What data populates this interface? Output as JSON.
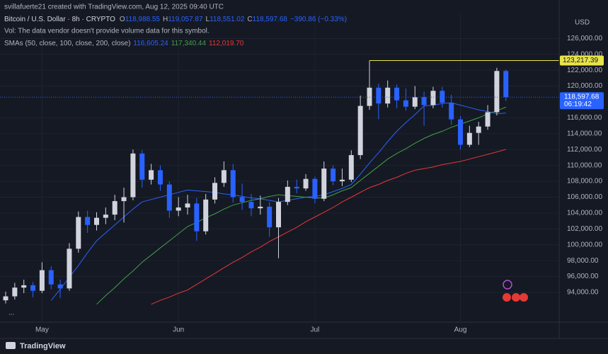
{
  "header": {
    "byline": "svillafuerte21 created with TradingView.com, Aug 12, 2025 09:40 UTC",
    "symbol": "Bitcoin / U.S. Dollar · 8h · CRYPTO",
    "ohlc_legend": [
      [
        "O",
        "118,988.55"
      ],
      [
        "H",
        "119,057.87"
      ],
      [
        "L",
        "118,551.02"
      ],
      [
        "C",
        "118,597.68"
      ]
    ],
    "change": "−390.86 (−0.33%)",
    "volume_note": "Vol: The data vendor doesn't provide volume data for this symbol.",
    "sma_legend": "SMAs (50, close, 100, close, 200, close)",
    "sma_values": [
      "116,605.24",
      "117,340.44",
      "112,019.70"
    ],
    "currency": "USD",
    "more": "...",
    "brand": "TradingView"
  },
  "chart_data": {
    "type": "candlestick",
    "categories": [
      null,
      null,
      null,
      null,
      "May",
      null,
      null,
      null,
      null,
      null,
      null,
      null,
      null,
      null,
      null,
      null,
      null,
      null,
      null,
      "Jun",
      null,
      null,
      null,
      null,
      null,
      null,
      null,
      null,
      null,
      null,
      null,
      null,
      null,
      null,
      "Jul",
      null,
      null,
      null,
      null,
      null,
      null,
      null,
      null,
      null,
      null,
      null,
      null,
      null,
      null,
      null,
      "Aug",
      null,
      null,
      null,
      null,
      null
    ],
    "open": [
      93000,
      93500,
      94600,
      94900,
      94200,
      96800,
      95000,
      94500,
      99500,
      103500,
      102500,
      103400,
      103800,
      105500,
      106000,
      111500,
      108200,
      109400,
      107600,
      104300,
      104700,
      105200,
      101700,
      105700,
      107800,
      109400,
      106000,
      105400,
      104600,
      104800,
      102200,
      105400,
      107300,
      107100,
      108300,
      105800,
      109600,
      108000,
      108200,
      111300,
      117500,
      119800,
      117800,
      119800,
      118200,
      117400,
      118600,
      117600,
      119400,
      117900,
      115800,
      112600,
      114100,
      114900,
      116700,
      121900
    ],
    "high": [
      94100,
      95200,
      95600,
      95300,
      97800,
      97300,
      95600,
      100200,
      104200,
      104300,
      104100,
      104700,
      106300,
      107200,
      112000,
      111900,
      110200,
      110000,
      108000,
      106000,
      106300,
      105900,
      106400,
      108500,
      110500,
      110200,
      107700,
      106400,
      106200,
      105400,
      105900,
      108100,
      108200,
      108900,
      108600,
      110500,
      110000,
      109600,
      111900,
      118800,
      123217.39,
      120300,
      120700,
      120200,
      119700,
      120000,
      119300,
      119900,
      119900,
      118900,
      116200,
      115000,
      115500,
      117600,
      122300,
      122100
    ],
    "low": [
      92600,
      93100,
      93900,
      93400,
      93900,
      94400,
      93300,
      94200,
      99000,
      101500,
      101800,
      102600,
      103100,
      102800,
      105600,
      107200,
      107600,
      106800,
      103400,
      103600,
      103800,
      100500,
      101300,
      105200,
      107300,
      105300,
      104400,
      103600,
      103800,
      101000,
      98300,
      105000,
      106500,
      106800,
      105200,
      105500,
      107500,
      107400,
      107900,
      110800,
      117000,
      115800,
      117300,
      117200,
      116900,
      117100,
      115000,
      117200,
      117300,
      115100,
      112000,
      112300,
      112600,
      114500,
      116300,
      118100
    ],
    "close": [
      93500,
      94600,
      94900,
      94200,
      96800,
      95000,
      94500,
      99500,
      103500,
      102500,
      103400,
      103800,
      105500,
      106000,
      111500,
      108200,
      109400,
      107600,
      104300,
      104700,
      105200,
      101700,
      105700,
      107800,
      109400,
      106000,
      105400,
      104600,
      104800,
      102200,
      105400,
      107300,
      107100,
      108300,
      105800,
      109600,
      108000,
      108200,
      111300,
      117500,
      119800,
      117800,
      119800,
      118200,
      117400,
      118600,
      117600,
      119400,
      117900,
      115800,
      112600,
      114100,
      114900,
      116700,
      121900,
      118597.68
    ],
    "up_color": "#d1d4dc",
    "down_color": "#2962ff",
    "series": [
      {
        "color": "#2962ff",
        "values": [
          null,
          null,
          null,
          null,
          null,
          93000,
          94400,
          95900,
          97400,
          99000,
          100500,
          101500,
          102500,
          103500,
          104500,
          105400,
          105700,
          106000,
          106300,
          106600,
          106900,
          106800,
          106700,
          106600,
          106400,
          106300,
          106100,
          105900,
          105800,
          105600,
          105400,
          105600,
          105800,
          106000,
          106100,
          106300,
          106700,
          107100,
          107600,
          108900,
          110300,
          111600,
          113000,
          114300,
          115400,
          116400,
          117500,
          117600,
          117800,
          117900,
          117600,
          117300,
          117000,
          116800,
          116500,
          116605.24
        ]
      },
      {
        "color": "#43a047",
        "values": [
          null,
          null,
          null,
          null,
          null,
          null,
          null,
          null,
          null,
          null,
          92500,
          93600,
          94600,
          95700,
          96700,
          97800,
          98700,
          99600,
          100500,
          101400,
          102300,
          102800,
          103400,
          103900,
          104500,
          105000,
          105300,
          105600,
          105800,
          106100,
          106300,
          106200,
          106100,
          106000,
          105900,
          105900,
          106300,
          106800,
          107200,
          108100,
          109000,
          109900,
          110800,
          111500,
          112100,
          112800,
          113400,
          113900,
          114300,
          114800,
          115200,
          115600,
          116000,
          116500,
          116900,
          117340.44
        ]
      },
      {
        "color": "#e53935",
        "values": [
          null,
          null,
          null,
          null,
          null,
          null,
          null,
          null,
          null,
          null,
          null,
          null,
          null,
          null,
          null,
          null,
          92500,
          93000,
          93400,
          93900,
          94300,
          95000,
          95700,
          96400,
          97100,
          97800,
          98400,
          99100,
          99700,
          100400,
          101000,
          101600,
          102200,
          102900,
          103500,
          104100,
          104700,
          105400,
          106000,
          106600,
          107200,
          107600,
          108100,
          108500,
          109000,
          109400,
          109600,
          109800,
          110100,
          110300,
          110500,
          110800,
          111100,
          111400,
          111700,
          112019.7
        ]
      }
    ],
    "ylim": [
      90250,
      129240
    ],
    "yticks": [
      {
        "value": 94000,
        "label": "94,000.00"
      },
      {
        "value": 96000,
        "label": "96,000.00"
      },
      {
        "value": 98000,
        "label": "98,000.00"
      },
      {
        "value": 100000,
        "label": "100,000.00"
      },
      {
        "value": 102000,
        "label": "102,000.00"
      },
      {
        "value": 104000,
        "label": "104,000.00"
      },
      {
        "value": 106000,
        "label": "106,000.00"
      },
      {
        "value": 108000,
        "label": "108,000.00"
      },
      {
        "value": 110000,
        "label": "110,000.00"
      },
      {
        "value": 112000,
        "label": "112,000.00"
      },
      {
        "value": 114000,
        "label": "114,000.00"
      },
      {
        "value": 116000,
        "label": "116,000.00"
      },
      {
        "value": 120000,
        "label": "120,000.00"
      },
      {
        "value": 122000,
        "label": "122,000.00"
      },
      {
        "value": 124000,
        "label": "124,000.00"
      },
      {
        "value": 126000,
        "label": "126,000.00"
      }
    ],
    "grid": true,
    "high_line": {
      "value": 123217.39,
      "label": "123,217.39",
      "color": "#e8e34a",
      "start": 40
    },
    "last_price": {
      "value": 118597.68,
      "label": "118,597.68",
      "countdown": "06:19:42",
      "color": "#2962ff"
    }
  }
}
